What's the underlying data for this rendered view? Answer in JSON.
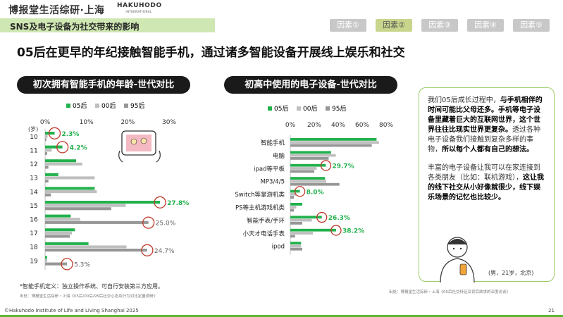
{
  "header": {
    "brand": "博报堂生活综研·上海",
    "logo_main": "HAKUHODO",
    "logo_sub": "INTERNATIONAL",
    "section": "SNS及电子设备为社交带来的影响",
    "tabs": [
      "因素①",
      "因素②",
      "因素③",
      "因素④",
      "因素⑤"
    ],
    "active_tab": 1
  },
  "headline": "05后在更早的年纪接触智能手机，通过诸多智能设备开展线上娱乐和社交",
  "colors": {
    "gen05": "#23b14d",
    "gen00": "#bfbfbf",
    "gen95": "#969696",
    "highlight": "#c0392b",
    "accent": "#5fb832"
  },
  "chart_data": [
    {
      "type": "bar",
      "orientation": "horizontal",
      "title": "初次拥有智能手机的年龄-世代对比",
      "y_unit": "(岁)",
      "categories": [
        "10",
        "11",
        "12",
        "13",
        "14",
        "15",
        "16",
        "17",
        "18",
        "19"
      ],
      "series": [
        {
          "name": "05后",
          "values": [
            2.3,
            4.2,
            7.5,
            3.2,
            12.0,
            27.8,
            6.2,
            7.2,
            10.5,
            0.5
          ]
        },
        {
          "name": "00后",
          "values": [
            0.6,
            1.6,
            9.0,
            12.0,
            12.5,
            19.5,
            8.5,
            6.5,
            19.7,
            0.5
          ]
        },
        {
          "name": "95后",
          "values": [
            0.3,
            0.5,
            0.8,
            0.8,
            1.4,
            16.0,
            25.0,
            6.0,
            24.7,
            5.3
          ]
        }
      ],
      "xlim": [
        0,
        30
      ],
      "xticks": [
        "0%",
        "10%",
        "20%",
        "30%"
      ],
      "data_labels": [
        {
          "category": "10",
          "series": "05后",
          "text": "2.3%"
        },
        {
          "category": "11",
          "series": "05后",
          "text": "4.2%"
        },
        {
          "category": "15",
          "series": "05后",
          "text": "27.8%"
        },
        {
          "category": "16",
          "series": "95后",
          "text": "25.0%"
        },
        {
          "category": "18",
          "series": "95后",
          "text": "24.7%"
        },
        {
          "category": "19",
          "series": "95后",
          "text": "5.3%"
        }
      ],
      "legend": "top"
    },
    {
      "type": "bar",
      "orientation": "horizontal",
      "title": "初高中使用的电子设备-世代对比",
      "categories": [
        "智能手机",
        "电脑",
        "ipad等平板",
        "MP3/4/5",
        "Switch等掌游机类",
        "PS等主机游戏机类",
        "智能手表/手环",
        "小天才电话手表",
        "ipod"
      ],
      "series": [
        {
          "name": "05后",
          "values": [
            72,
            34,
            29.7,
            29,
            8.0,
            10,
            26.3,
            38.2,
            9
          ]
        },
        {
          "name": "00后",
          "values": [
            74,
            38,
            22,
            30,
            5,
            5,
            18,
            19,
            9
          ]
        },
        {
          "name": "95后",
          "values": [
            68,
            32,
            20,
            41,
            3,
            3,
            10,
            4,
            10
          ]
        }
      ],
      "xlim": [
        0,
        80
      ],
      "xticks": [
        "0%",
        "20%",
        "40%",
        "60%",
        "80%"
      ],
      "data_labels": [
        {
          "category": "ipad等平板",
          "series": "05后",
          "text": "29.7%"
        },
        {
          "category": "Switch等掌游机类",
          "series": "05后",
          "text": "8.0%"
        },
        {
          "category": "智能手表/手环",
          "series": "05后",
          "text": "26.3%"
        },
        {
          "category": "小天才电话手表",
          "series": "05后",
          "text": "38.2%"
        }
      ],
      "legend": "top"
    }
  ],
  "note": "*智能手机定义：独立操作系统、可自行安装第三方应用。",
  "source_left": "出处：博报堂生活综研・上海《05后/00后/95后社交心态及行为对比定量调研》",
  "source_right": "出处：博报堂生活综研・上海《05后社交特征及背后欲求的深度访谈》",
  "quote": {
    "p1": [
      {
        "t": "我们05后成长过程中，",
        "b": false
      },
      {
        "t": "与手机相伴的时间可能比父母还多。手机等电子设备里藏着巨大的互联网世界，这个世界往往比现实世界更复杂。",
        "b": true
      },
      {
        "t": "透过各种电子设备我们接触到复杂多样的事物，",
        "b": false
      },
      {
        "t": "所以每个人都有自己的想法。",
        "b": true
      }
    ],
    "p2": [
      {
        "t": "丰富的电子设备让我可以在家连接到各类朋友（比如：联机游戏），",
        "b": false
      },
      {
        "t": "这让我的线下社交从小好像就很少，线下娱乐场景的记忆也比较少。",
        "b": true
      }
    ],
    "caption": "(男，21岁，北京)"
  },
  "footer": {
    "copyright": "©Hakuhodo Institute of Life and Living Shanghai 2025",
    "page": "21"
  }
}
